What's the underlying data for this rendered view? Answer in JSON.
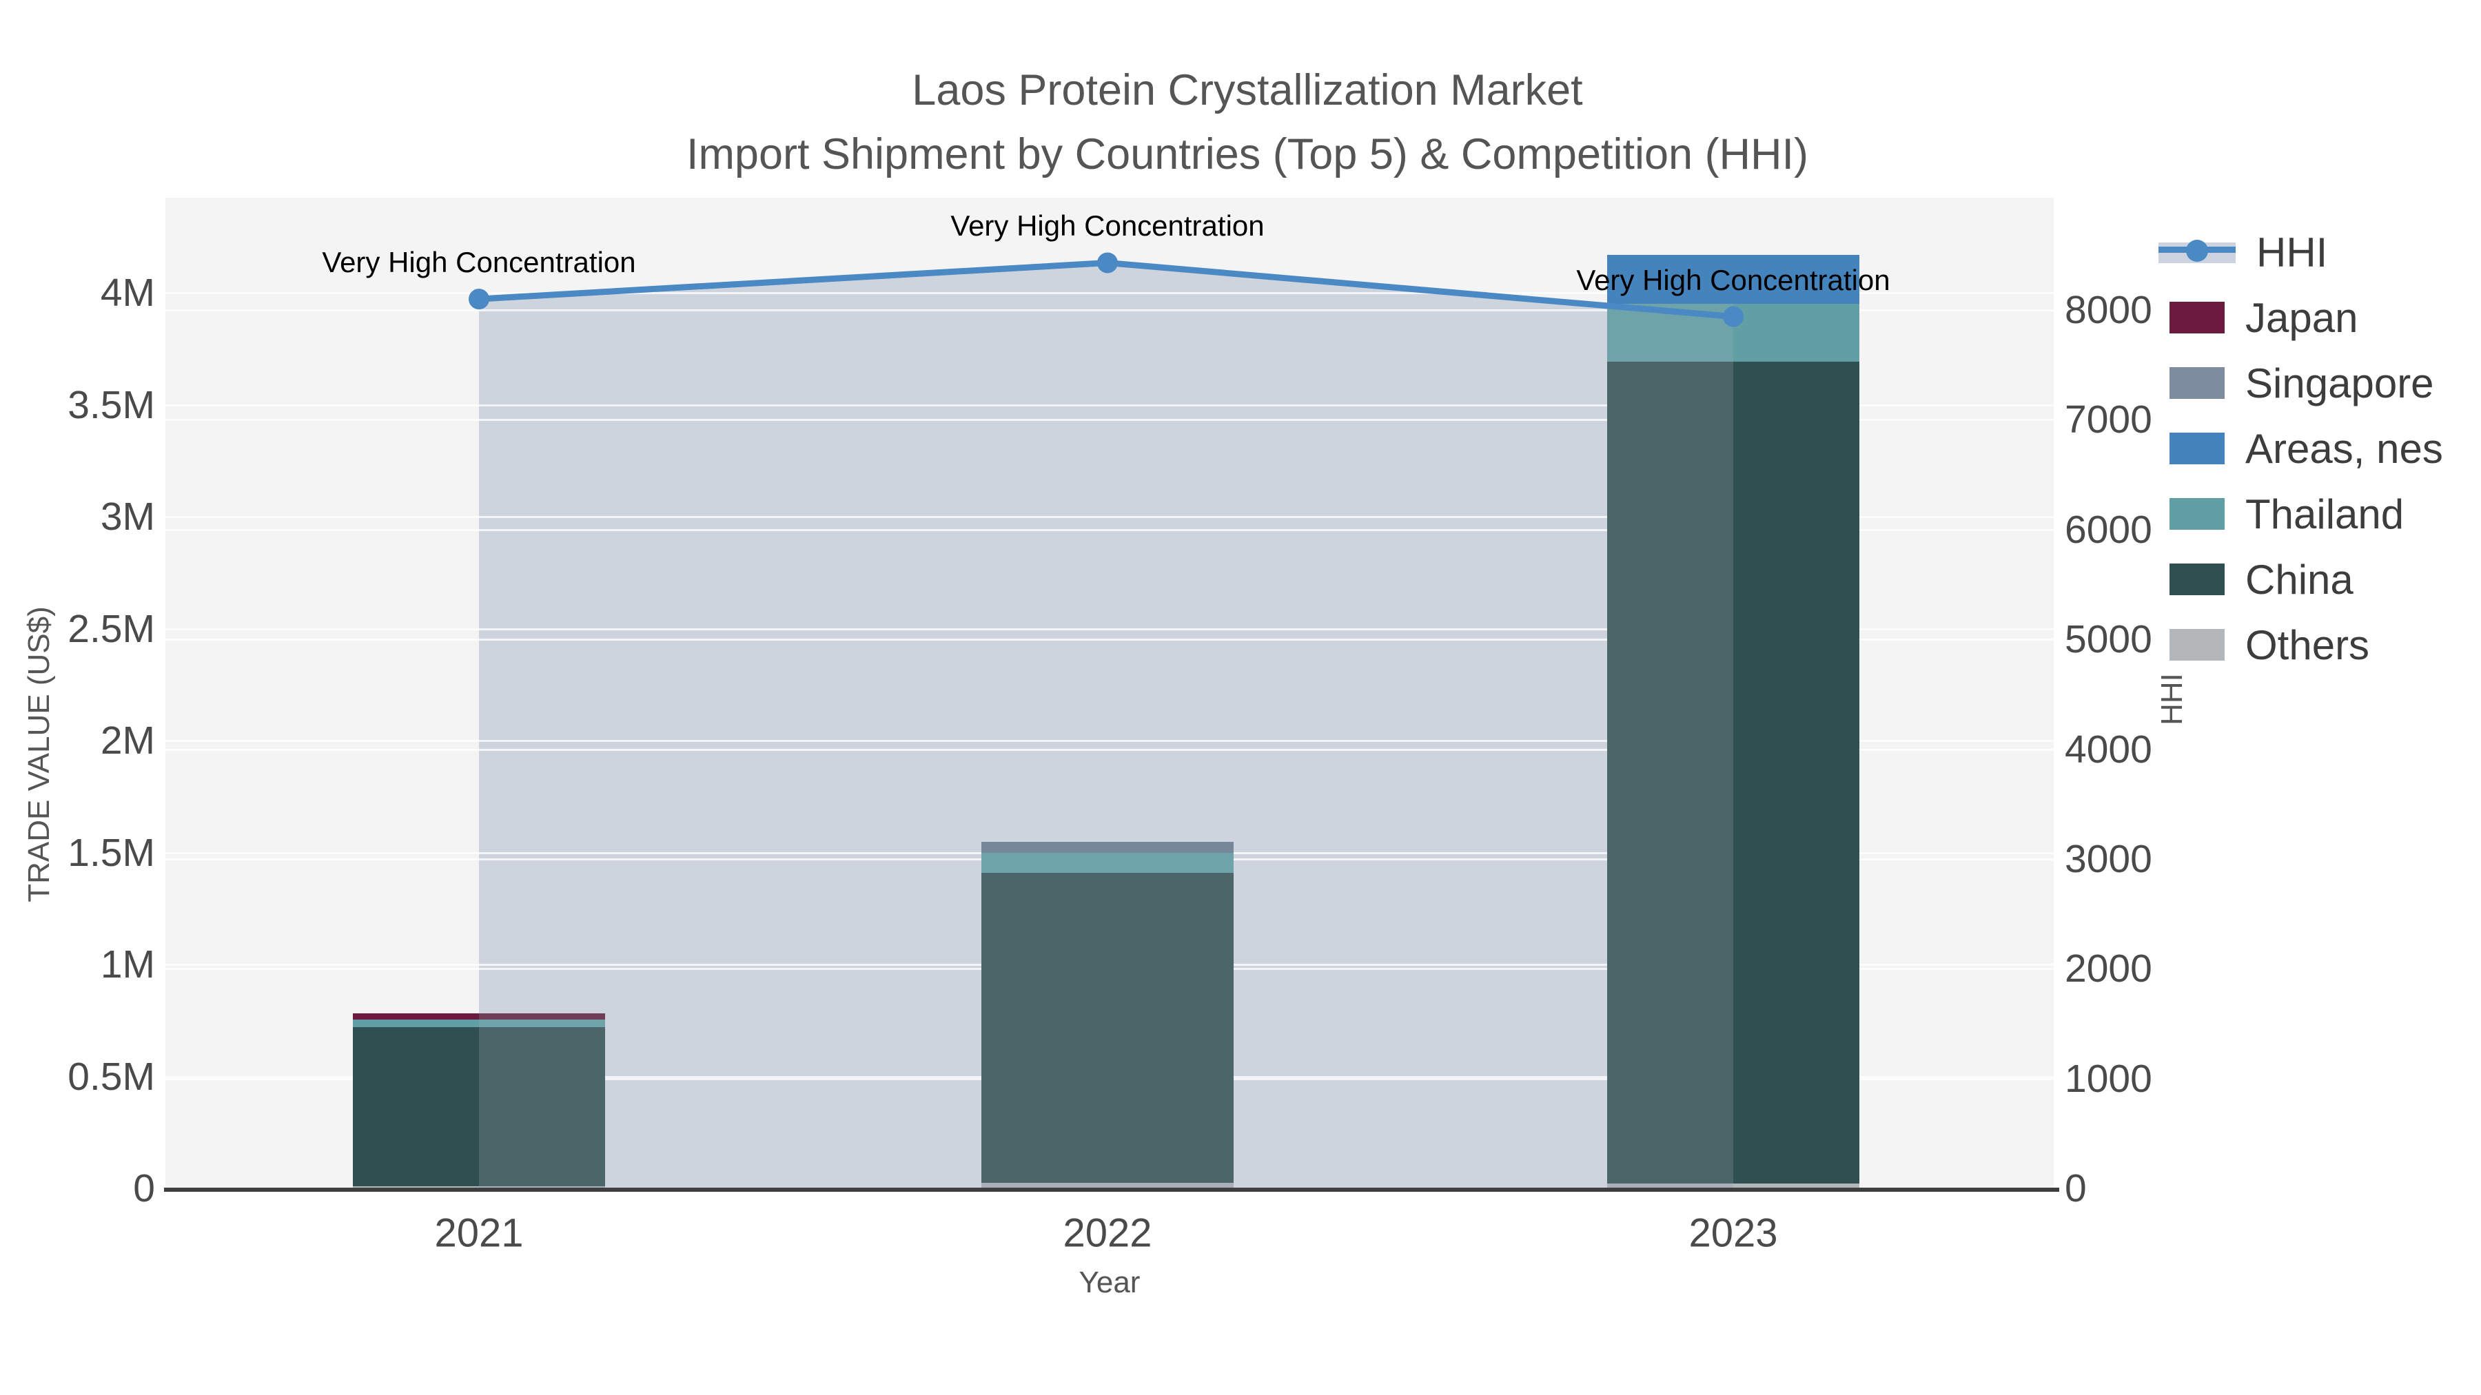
{
  "title": {
    "line1": "Laos Protein Crystallization Market",
    "line2": "Import Shipment by Countries (Top 5) & Competition (HHI)"
  },
  "axes": {
    "x": {
      "label": "Year",
      "ticks": [
        "2021",
        "2022",
        "2023"
      ]
    },
    "y_left": {
      "label": "TRADE VALUE (US$)",
      "ticks": [
        "0",
        "0.5M",
        "1M",
        "1.5M",
        "2M",
        "2.5M",
        "3M",
        "3.5M",
        "4M"
      ]
    },
    "y_right": {
      "label": "HHI",
      "ticks": [
        "0",
        "1000",
        "2000",
        "3000",
        "4000",
        "5000",
        "6000",
        "7000",
        "8000"
      ]
    }
  },
  "legend": {
    "items": [
      {
        "label": "HHI",
        "type": "line",
        "color": "#4a89c4"
      },
      {
        "label": "Japan",
        "type": "box",
        "color": "#6b1b3d"
      },
      {
        "label": "Singapore",
        "type": "box",
        "color": "#7d8c9e"
      },
      {
        "label": "Areas, nes",
        "type": "box",
        "color": "#4583bd"
      },
      {
        "label": "Thailand",
        "type": "box",
        "color": "#60a0a4"
      },
      {
        "label": "China",
        "type": "box",
        "color": "#2f4f50"
      },
      {
        "label": "Others",
        "type": "box",
        "color": "#b4b7ba"
      }
    ]
  },
  "chart_data": {
    "type": "bar",
    "subtype": "stacked-bars-with-line-on-secondary-axis",
    "categories": [
      "2021",
      "2022",
      "2023"
    ],
    "bar_unit": "US$",
    "series": [
      {
        "name": "Japan",
        "color": "#6b1b3d",
        "color_under_area": "#6f3d55",
        "values": [
          28000,
          0,
          0
        ]
      },
      {
        "name": "Singapore",
        "color": "#7d8c9e",
        "color_under_area": "#76879a",
        "values": [
          0,
          49000,
          0
        ]
      },
      {
        "name": "Areas, nes",
        "color": "#4583bd",
        "color_under_area": "#4583bd",
        "values": [
          0,
          0,
          218000
        ]
      },
      {
        "name": "Thailand",
        "color": "#60a0a4",
        "color_under_area": "#6fa3aa",
        "values": [
          34000,
          89000,
          259000
        ]
      },
      {
        "name": "China",
        "color": "#2f4f50",
        "color_under_area": "#4b6568",
        "values": [
          711000,
          1385000,
          3671000
        ]
      },
      {
        "name": "Others",
        "color": "#b4b7ba",
        "color_under_area": "#abb0b8",
        "values": [
          9000,
          25000,
          21000
        ]
      }
    ],
    "stack_order_bottom_to_top": [
      "Others",
      "China",
      "Thailand",
      "Areas, nes",
      "Singapore",
      "Japan"
    ],
    "bar_totals": [
      782000,
      1548000,
      4169000
    ],
    "line_series": {
      "name": "HHI",
      "axis": "right",
      "color": "#4a89c4",
      "area_fill": "#ced4dd",
      "values": [
        8100,
        8430,
        7940
      ],
      "point_annotations": [
        "Very High Concentration",
        "Very High Concentration",
        "Very High Concentration"
      ]
    },
    "title": "Laos Protein Crystallization Market",
    "subtitle": "Import Shipment by Countries (Top 5) & Competition (HHI)",
    "xlabel": "Year",
    "ylabel_left": "TRADE VALUE (US$)",
    "ylabel_right": "HHI",
    "ylim_left_usd": [
      0,
      4425000
    ],
    "ylim_right_hhi": [
      0,
      9030
    ],
    "grid": true,
    "legend_position": "right"
  }
}
